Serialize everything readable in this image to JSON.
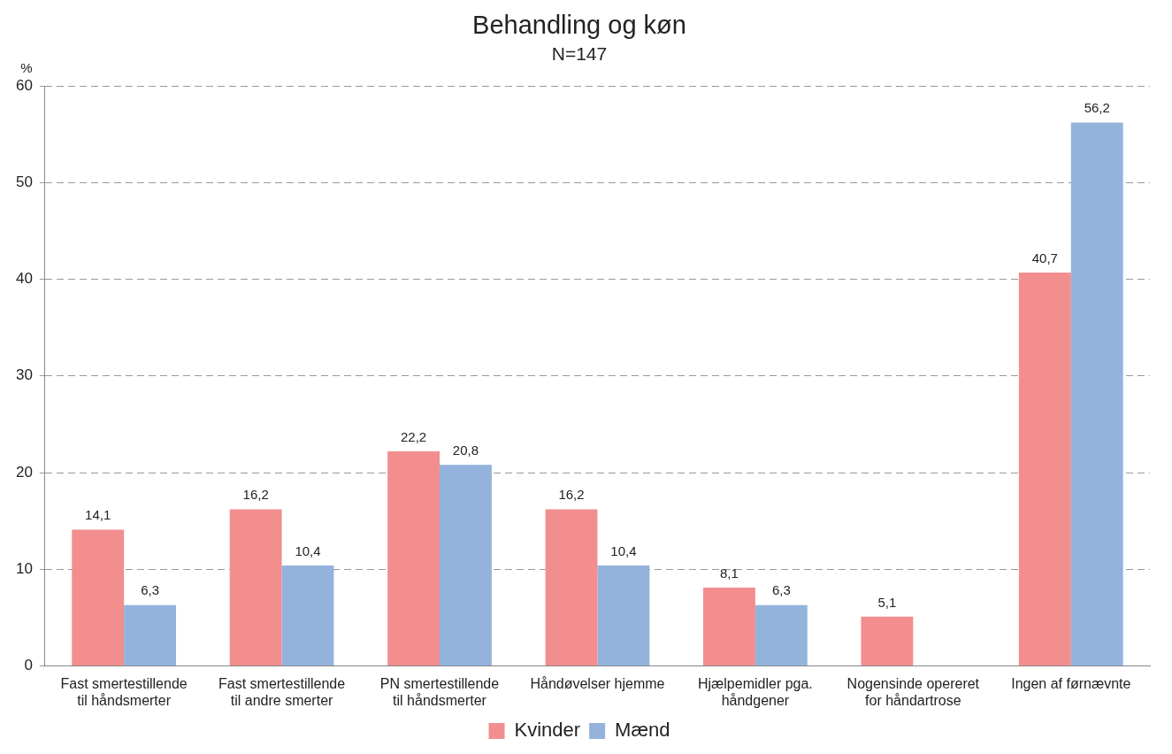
{
  "chart_data": {
    "type": "bar",
    "title": "Behandling og køn",
    "subtitle": "N=147",
    "ylabel": "%",
    "categories": [
      "Fast smertestillende til håndsmerter",
      "Fast smertestillende til andre smerter",
      "PN smertestillende til håndsmerter",
      "Håndøvelser hjemme",
      "Hjælpemidler pga. håndgener",
      "Nogensinde opereret for håndartrose",
      "Ingen af førnævnte"
    ],
    "series": [
      {
        "name": "Kvinder",
        "color": "#f28e8e",
        "values": [
          14.1,
          16.2,
          22.2,
          16.2,
          8.1,
          5.1,
          40.7
        ],
        "value_labels": [
          "14,1",
          "16,2",
          "22,2",
          "16,2",
          "8,1",
          "5,1",
          "40,7"
        ]
      },
      {
        "name": "Mænd",
        "color": "#93b3dd",
        "values": [
          6.3,
          10.4,
          20.8,
          10.4,
          6.3,
          null,
          56.2
        ],
        "value_labels": [
          "6,3",
          "10,4",
          "20,8",
          "10,4",
          "6,3",
          null,
          "56,2"
        ]
      }
    ],
    "ylim": [
      0,
      60
    ],
    "yticks": [
      0,
      10,
      20,
      30,
      40,
      50,
      60
    ],
    "grid": "y",
    "legend": "bottom"
  }
}
